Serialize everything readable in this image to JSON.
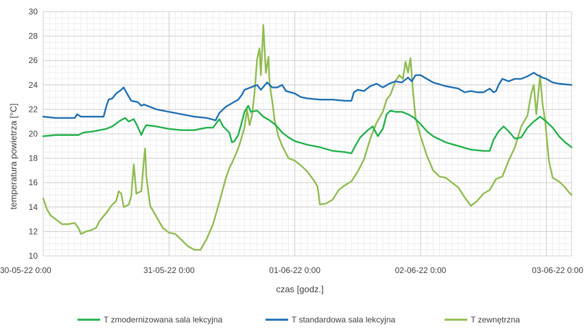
{
  "chart_data": {
    "type": "line",
    "xlabel": "czas [godz.]",
    "ylabel": "temperatura powietrza [°C]",
    "ylim": [
      10,
      30
    ],
    "xlim": [
      0,
      4.2
    ],
    "grid": true,
    "legend_position": "bottom",
    "y_ticks": [
      "10",
      "12",
      "14",
      "16",
      "18",
      "20",
      "22",
      "24",
      "26",
      "28",
      "30"
    ],
    "x_ticks": [
      {
        "x": 0,
        "label": "30-05-22 0:00"
      },
      {
        "x": 1,
        "label": "31-05-22 0:00"
      },
      {
        "x": 2,
        "label": "01-06-22 0:00"
      },
      {
        "x": 3,
        "label": "02-06-22 0:00"
      },
      {
        "x": 4,
        "label": "03-06-22 0:00"
      }
    ],
    "series": [
      {
        "name": "T zmodernizowana sala lekcyjna",
        "color": "#22b14c",
        "points": [
          [
            0.0,
            19.8
          ],
          [
            0.1,
            19.9
          ],
          [
            0.2,
            19.9
          ],
          [
            0.28,
            19.9
          ],
          [
            0.32,
            20.1
          ],
          [
            0.4,
            20.2
          ],
          [
            0.5,
            20.4
          ],
          [
            0.55,
            20.6
          ],
          [
            0.6,
            21.0
          ],
          [
            0.65,
            21.3
          ],
          [
            0.68,
            21.0
          ],
          [
            0.72,
            21.2
          ],
          [
            0.75,
            20.6
          ],
          [
            0.78,
            19.9
          ],
          [
            0.8,
            20.4
          ],
          [
            0.82,
            20.7
          ],
          [
            0.9,
            20.6
          ],
          [
            1.0,
            20.4
          ],
          [
            1.1,
            20.3
          ],
          [
            1.2,
            20.3
          ],
          [
            1.3,
            20.5
          ],
          [
            1.35,
            20.5
          ],
          [
            1.4,
            21.2
          ],
          [
            1.43,
            20.6
          ],
          [
            1.48,
            20.1
          ],
          [
            1.5,
            19.3
          ],
          [
            1.52,
            19.4
          ],
          [
            1.55,
            19.9
          ],
          [
            1.58,
            21.0
          ],
          [
            1.6,
            21.8
          ],
          [
            1.63,
            22.3
          ],
          [
            1.65,
            21.8
          ],
          [
            1.7,
            21.9
          ],
          [
            1.75,
            21.4
          ],
          [
            1.8,
            21.1
          ],
          [
            1.85,
            20.7
          ],
          [
            1.9,
            20.1
          ],
          [
            1.95,
            19.7
          ],
          [
            2.0,
            19.4
          ],
          [
            2.1,
            19.1
          ],
          [
            2.2,
            18.9
          ],
          [
            2.3,
            18.6
          ],
          [
            2.4,
            18.5
          ],
          [
            2.45,
            18.4
          ],
          [
            2.48,
            19.0
          ],
          [
            2.52,
            19.7
          ],
          [
            2.58,
            20.3
          ],
          [
            2.62,
            20.6
          ],
          [
            2.66,
            19.8
          ],
          [
            2.7,
            20.4
          ],
          [
            2.73,
            21.6
          ],
          [
            2.76,
            21.9
          ],
          [
            2.8,
            21.8
          ],
          [
            2.85,
            21.8
          ],
          [
            2.9,
            21.6
          ],
          [
            2.95,
            21.3
          ],
          [
            3.0,
            20.8
          ],
          [
            3.05,
            20.2
          ],
          [
            3.1,
            19.8
          ],
          [
            3.2,
            19.3
          ],
          [
            3.3,
            19.0
          ],
          [
            3.4,
            18.7
          ],
          [
            3.5,
            18.6
          ],
          [
            3.55,
            18.6
          ],
          [
            3.58,
            19.5
          ],
          [
            3.62,
            20.2
          ],
          [
            3.66,
            20.6
          ],
          [
            3.7,
            20.2
          ],
          [
            3.75,
            19.6
          ],
          [
            3.8,
            19.7
          ],
          [
            3.85,
            20.5
          ],
          [
            3.9,
            21.0
          ],
          [
            3.95,
            21.4
          ],
          [
            4.0,
            21.0
          ],
          [
            4.05,
            20.5
          ],
          [
            4.1,
            19.8
          ],
          [
            4.15,
            19.3
          ],
          [
            4.2,
            18.9
          ]
        ]
      },
      {
        "name": "T standardowa sala lekcyjna",
        "color": "#1f6fb2",
        "points": [
          [
            0.0,
            21.4
          ],
          [
            0.1,
            21.3
          ],
          [
            0.25,
            21.3
          ],
          [
            0.27,
            21.6
          ],
          [
            0.3,
            21.4
          ],
          [
            0.4,
            21.4
          ],
          [
            0.48,
            21.4
          ],
          [
            0.5,
            22.2
          ],
          [
            0.52,
            22.8
          ],
          [
            0.55,
            22.9
          ],
          [
            0.58,
            23.3
          ],
          [
            0.62,
            23.6
          ],
          [
            0.64,
            23.8
          ],
          [
            0.66,
            23.4
          ],
          [
            0.7,
            22.7
          ],
          [
            0.75,
            22.6
          ],
          [
            0.78,
            22.3
          ],
          [
            0.8,
            22.4
          ],
          [
            0.85,
            22.2
          ],
          [
            0.9,
            22.0
          ],
          [
            1.0,
            21.8
          ],
          [
            1.1,
            21.6
          ],
          [
            1.2,
            21.4
          ],
          [
            1.3,
            21.3
          ],
          [
            1.37,
            21.1
          ],
          [
            1.4,
            21.7
          ],
          [
            1.45,
            22.2
          ],
          [
            1.5,
            22.5
          ],
          [
            1.55,
            22.8
          ],
          [
            1.58,
            23.2
          ],
          [
            1.6,
            23.6
          ],
          [
            1.65,
            23.8
          ],
          [
            1.7,
            24.0
          ],
          [
            1.73,
            23.6
          ],
          [
            1.78,
            24.2
          ],
          [
            1.82,
            23.8
          ],
          [
            1.86,
            23.8
          ],
          [
            1.9,
            24.0
          ],
          [
            1.93,
            23.5
          ],
          [
            2.0,
            23.3
          ],
          [
            2.05,
            23.0
          ],
          [
            2.1,
            22.9
          ],
          [
            2.2,
            22.8
          ],
          [
            2.3,
            22.8
          ],
          [
            2.4,
            22.7
          ],
          [
            2.45,
            22.7
          ],
          [
            2.47,
            23.4
          ],
          [
            2.5,
            23.6
          ],
          [
            2.55,
            23.5
          ],
          [
            2.6,
            23.9
          ],
          [
            2.65,
            24.1
          ],
          [
            2.7,
            23.8
          ],
          [
            2.75,
            24.1
          ],
          [
            2.8,
            24.3
          ],
          [
            2.85,
            24.2
          ],
          [
            2.9,
            24.6
          ],
          [
            2.93,
            24.3
          ],
          [
            2.96,
            24.8
          ],
          [
            3.0,
            24.8
          ],
          [
            3.05,
            24.5
          ],
          [
            3.1,
            24.2
          ],
          [
            3.2,
            23.9
          ],
          [
            3.3,
            23.7
          ],
          [
            3.35,
            23.4
          ],
          [
            3.4,
            23.5
          ],
          [
            3.45,
            23.4
          ],
          [
            3.5,
            23.4
          ],
          [
            3.55,
            23.7
          ],
          [
            3.58,
            23.4
          ],
          [
            3.6,
            23.5
          ],
          [
            3.62,
            24.0
          ],
          [
            3.65,
            24.5
          ],
          [
            3.7,
            24.3
          ],
          [
            3.75,
            24.5
          ],
          [
            3.8,
            24.5
          ],
          [
            3.85,
            24.7
          ],
          [
            3.9,
            25.0
          ],
          [
            3.93,
            24.8
          ],
          [
            3.97,
            24.6
          ],
          [
            4.0,
            24.5
          ],
          [
            4.05,
            24.2
          ],
          [
            4.1,
            24.1
          ],
          [
            4.2,
            24.0
          ]
        ]
      },
      {
        "name": "T zewnętrzna",
        "color": "#8fbc4f",
        "points": [
          [
            0.0,
            14.7
          ],
          [
            0.03,
            13.8
          ],
          [
            0.06,
            13.3
          ],
          [
            0.1,
            13.0
          ],
          [
            0.15,
            12.6
          ],
          [
            0.2,
            12.6
          ],
          [
            0.25,
            12.7
          ],
          [
            0.28,
            12.3
          ],
          [
            0.3,
            11.8
          ],
          [
            0.34,
            12.0
          ],
          [
            0.38,
            12.1
          ],
          [
            0.42,
            12.3
          ],
          [
            0.45,
            12.9
          ],
          [
            0.5,
            13.5
          ],
          [
            0.55,
            14.2
          ],
          [
            0.58,
            14.5
          ],
          [
            0.6,
            15.3
          ],
          [
            0.62,
            15.1
          ],
          [
            0.64,
            14.0
          ],
          [
            0.68,
            14.2
          ],
          [
            0.7,
            14.9
          ],
          [
            0.72,
            17.5
          ],
          [
            0.74,
            15.1
          ],
          [
            0.78,
            15.3
          ],
          [
            0.8,
            17.9
          ],
          [
            0.81,
            18.8
          ],
          [
            0.82,
            16.5
          ],
          [
            0.85,
            14.1
          ],
          [
            0.9,
            13.2
          ],
          [
            0.95,
            12.3
          ],
          [
            1.0,
            11.9
          ],
          [
            1.05,
            11.8
          ],
          [
            1.1,
            11.3
          ],
          [
            1.15,
            10.8
          ],
          [
            1.2,
            10.5
          ],
          [
            1.25,
            10.5
          ],
          [
            1.3,
            11.4
          ],
          [
            1.35,
            12.6
          ],
          [
            1.4,
            14.4
          ],
          [
            1.45,
            16.3
          ],
          [
            1.48,
            17.2
          ],
          [
            1.5,
            17.6
          ],
          [
            1.53,
            18.3
          ],
          [
            1.56,
            19.1
          ],
          [
            1.6,
            20.5
          ],
          [
            1.62,
            22.0
          ],
          [
            1.64,
            20.7
          ],
          [
            1.66,
            21.5
          ],
          [
            1.68,
            23.4
          ],
          [
            1.7,
            26.1
          ],
          [
            1.72,
            27.0
          ],
          [
            1.73,
            24.8
          ],
          [
            1.75,
            28.9
          ],
          [
            1.77,
            25.0
          ],
          [
            1.79,
            26.3
          ],
          [
            1.8,
            24.1
          ],
          [
            1.82,
            22.7
          ],
          [
            1.84,
            21.1
          ],
          [
            1.87,
            19.8
          ],
          [
            1.9,
            19.0
          ],
          [
            1.95,
            18.0
          ],
          [
            2.0,
            17.8
          ],
          [
            2.05,
            17.4
          ],
          [
            2.1,
            16.9
          ],
          [
            2.15,
            16.2
          ],
          [
            2.18,
            15.7
          ],
          [
            2.2,
            14.2
          ],
          [
            2.25,
            14.3
          ],
          [
            2.3,
            14.6
          ],
          [
            2.35,
            15.4
          ],
          [
            2.4,
            15.8
          ],
          [
            2.45,
            16.1
          ],
          [
            2.5,
            16.9
          ],
          [
            2.55,
            17.9
          ],
          [
            2.6,
            19.6
          ],
          [
            2.65,
            20.9
          ],
          [
            2.7,
            21.8
          ],
          [
            2.73,
            22.8
          ],
          [
            2.76,
            23.2
          ],
          [
            2.8,
            24.3
          ],
          [
            2.83,
            24.8
          ],
          [
            2.86,
            24.5
          ],
          [
            2.88,
            25.9
          ],
          [
            2.9,
            25.0
          ],
          [
            2.92,
            26.2
          ],
          [
            2.94,
            23.4
          ],
          [
            2.96,
            21.3
          ],
          [
            3.0,
            19.8
          ],
          [
            3.05,
            18.2
          ],
          [
            3.1,
            17.0
          ],
          [
            3.15,
            16.5
          ],
          [
            3.2,
            16.4
          ],
          [
            3.25,
            16.0
          ],
          [
            3.3,
            15.6
          ],
          [
            3.35,
            14.8
          ],
          [
            3.4,
            14.1
          ],
          [
            3.45,
            14.5
          ],
          [
            3.5,
            15.1
          ],
          [
            3.55,
            15.4
          ],
          [
            3.6,
            16.3
          ],
          [
            3.65,
            16.5
          ],
          [
            3.7,
            17.8
          ],
          [
            3.75,
            18.9
          ],
          [
            3.8,
            20.6
          ],
          [
            3.85,
            21.5
          ],
          [
            3.88,
            23.3
          ],
          [
            3.9,
            24.0
          ],
          [
            3.92,
            21.6
          ],
          [
            3.95,
            24.8
          ],
          [
            3.97,
            22.4
          ],
          [
            3.99,
            21.1
          ],
          [
            4.02,
            17.8
          ],
          [
            4.05,
            16.4
          ],
          [
            4.1,
            16.1
          ],
          [
            4.15,
            15.6
          ],
          [
            4.18,
            15.2
          ],
          [
            4.2,
            15.0
          ]
        ]
      }
    ]
  }
}
